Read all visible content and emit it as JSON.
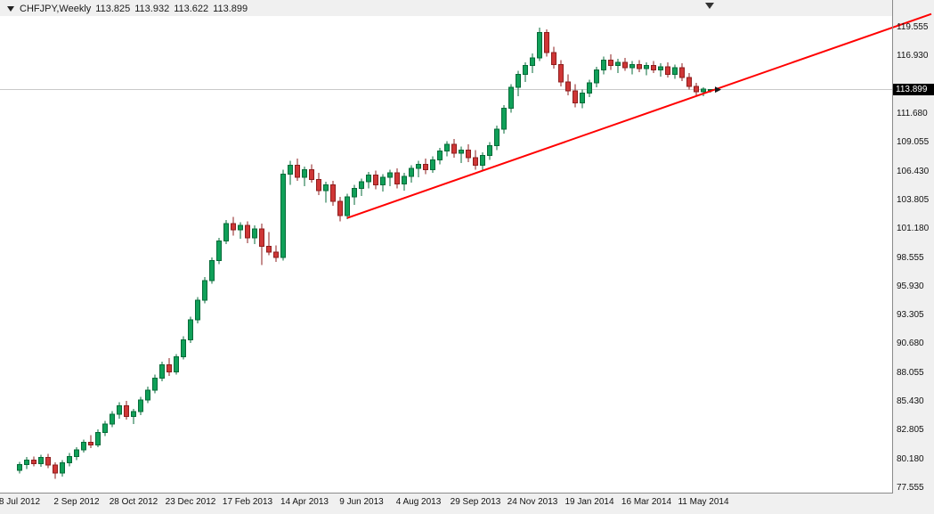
{
  "header": {
    "symbol": "CHFJPY,Weekly",
    "open": "113.825",
    "high": "113.932",
    "low": "113.622",
    "close": "113.899"
  },
  "icons": {
    "header_marker": "triangle-down-icon",
    "shift_marker": "triangle-down-icon",
    "price_arrow": "triangle-right-icon"
  },
  "colors": {
    "bull_fill": "#10a059",
    "bull_stroke": "#066b38",
    "bear_fill": "#cf3636",
    "bear_stroke": "#8e1d1d",
    "trendline": "#ff0000",
    "price_line": "#c9c9c9",
    "price_box_bg": "#000000",
    "price_box_text": "#ffffff",
    "marker": "#1a1a1a"
  },
  "chart_data": {
    "type": "candlestick",
    "symbol": "CHFJPY",
    "timeframe": "Weekly",
    "current_price": 113.899,
    "y_axis": {
      "max": 119.555,
      "min": 77.555,
      "step": 2.625,
      "visible_ticks": [
        119.555,
        116.93,
        111.68,
        109.055,
        106.43,
        103.805,
        101.18,
        98.555,
        95.93,
        93.305,
        90.68,
        88.055,
        85.43,
        82.805,
        80.18,
        77.555
      ]
    },
    "x_axis": {
      "labels": [
        {
          "index": 0,
          "text": "8 Jul 2012"
        },
        {
          "index": 8,
          "text": "2 Sep 2012"
        },
        {
          "index": 16,
          "text": "28 Oct 2012"
        },
        {
          "index": 24,
          "text": "23 Dec 2012"
        },
        {
          "index": 32,
          "text": "17 Feb 2013"
        },
        {
          "index": 40,
          "text": "14 Apr 2013"
        },
        {
          "index": 48,
          "text": "9 Jun 2013"
        },
        {
          "index": 56,
          "text": "4 Aug 2013"
        },
        {
          "index": 64,
          "text": "29 Sep 2013"
        },
        {
          "index": 72,
          "text": "24 Nov 2013"
        },
        {
          "index": 80,
          "text": "19 Jan 2014"
        },
        {
          "index": 88,
          "text": "16 Mar 2014"
        },
        {
          "index": 96,
          "text": "11 May 2014"
        }
      ]
    },
    "trendline": {
      "start_index": 46,
      "start_price": 102.2,
      "end_index": 128,
      "end_price": 120.8
    },
    "candles": [
      [
        79.2,
        79.95,
        78.9,
        79.7
      ],
      [
        79.7,
        80.4,
        79.3,
        80.1
      ],
      [
        80.1,
        80.45,
        79.55,
        79.8
      ],
      [
        79.8,
        80.6,
        79.5,
        80.35
      ],
      [
        80.35,
        80.7,
        79.4,
        79.65
      ],
      [
        79.65,
        79.9,
        78.4,
        78.95
      ],
      [
        78.95,
        80.1,
        78.6,
        79.85
      ],
      [
        79.85,
        80.75,
        79.55,
        80.45
      ],
      [
        80.45,
        81.3,
        80.1,
        81.05
      ],
      [
        81.05,
        82.0,
        80.8,
        81.75
      ],
      [
        81.75,
        82.4,
        81.2,
        81.5
      ],
      [
        81.5,
        82.9,
        81.3,
        82.65
      ],
      [
        82.65,
        83.7,
        82.3,
        83.4
      ],
      [
        83.4,
        84.6,
        83.1,
        84.3
      ],
      [
        84.3,
        85.4,
        83.9,
        85.05
      ],
      [
        85.05,
        85.5,
        83.8,
        84.1
      ],
      [
        84.1,
        84.8,
        83.4,
        84.55
      ],
      [
        84.55,
        85.9,
        84.2,
        85.6
      ],
      [
        85.6,
        86.8,
        85.3,
        86.5
      ],
      [
        86.5,
        87.9,
        86.2,
        87.6
      ],
      [
        87.6,
        89.1,
        87.3,
        88.8
      ],
      [
        88.8,
        89.4,
        87.8,
        88.15
      ],
      [
        88.15,
        89.8,
        87.9,
        89.55
      ],
      [
        89.55,
        91.4,
        89.3,
        91.1
      ],
      [
        91.1,
        93.2,
        90.8,
        92.9
      ],
      [
        92.9,
        95.0,
        92.6,
        94.7
      ],
      [
        94.7,
        96.8,
        94.4,
        96.5
      ],
      [
        96.5,
        98.6,
        96.2,
        98.3
      ],
      [
        98.3,
        100.4,
        98.0,
        100.1
      ],
      [
        100.1,
        102.0,
        99.8,
        101.7
      ],
      [
        101.7,
        102.3,
        100.6,
        101.1
      ],
      [
        101.1,
        101.8,
        100.3,
        101.5
      ],
      [
        101.5,
        101.9,
        99.9,
        100.4
      ],
      [
        100.4,
        101.5,
        99.8,
        101.2
      ],
      [
        101.2,
        101.7,
        97.9,
        99.6
      ],
      [
        99.6,
        100.9,
        98.8,
        99.1
      ],
      [
        99.1,
        99.7,
        98.2,
        98.6
      ],
      [
        98.6,
        106.6,
        98.3,
        106.2
      ],
      [
        106.2,
        107.4,
        105.2,
        107.0
      ],
      [
        107.0,
        107.6,
        105.6,
        105.9
      ],
      [
        105.9,
        106.9,
        105.1,
        106.6
      ],
      [
        106.6,
        107.1,
        105.4,
        105.7
      ],
      [
        105.7,
        106.3,
        104.3,
        104.7
      ],
      [
        104.7,
        105.5,
        103.6,
        105.2
      ],
      [
        105.2,
        105.6,
        103.3,
        103.7
      ],
      [
        103.7,
        104.1,
        101.9,
        102.4
      ],
      [
        102.4,
        104.4,
        102.1,
        104.1
      ],
      [
        104.1,
        105.2,
        103.4,
        104.9
      ],
      [
        104.9,
        105.8,
        104.2,
        105.5
      ],
      [
        105.5,
        106.4,
        104.9,
        106.1
      ],
      [
        106.1,
        106.5,
        104.8,
        105.2
      ],
      [
        105.2,
        106.2,
        104.6,
        105.9
      ],
      [
        105.9,
        106.6,
        105.1,
        106.3
      ],
      [
        106.3,
        106.7,
        104.9,
        105.3
      ],
      [
        105.3,
        106.3,
        104.7,
        106.0
      ],
      [
        106.0,
        107.0,
        105.4,
        106.7
      ],
      [
        106.7,
        107.4,
        105.9,
        107.1
      ],
      [
        107.1,
        107.6,
        106.2,
        106.6
      ],
      [
        106.6,
        107.8,
        106.3,
        107.5
      ],
      [
        107.5,
        108.6,
        107.1,
        108.3
      ],
      [
        108.3,
        109.2,
        107.8,
        108.9
      ],
      [
        108.9,
        109.4,
        107.7,
        108.1
      ],
      [
        108.1,
        108.7,
        107.2,
        108.4
      ],
      [
        108.4,
        108.9,
        107.3,
        107.7
      ],
      [
        107.7,
        108.4,
        106.6,
        107.0
      ],
      [
        107.0,
        108.2,
        106.5,
        107.9
      ],
      [
        107.9,
        109.1,
        107.5,
        108.8
      ],
      [
        108.8,
        110.6,
        108.4,
        110.3
      ],
      [
        110.3,
        112.5,
        109.9,
        112.2
      ],
      [
        112.2,
        114.4,
        111.8,
        114.1
      ],
      [
        114.1,
        115.6,
        113.3,
        115.3
      ],
      [
        115.3,
        116.4,
        114.6,
        116.1
      ],
      [
        116.1,
        117.2,
        115.4,
        116.8
      ],
      [
        116.8,
        119.55,
        116.5,
        119.1
      ],
      [
        119.1,
        119.4,
        116.9,
        117.3
      ],
      [
        117.3,
        117.8,
        115.8,
        116.2
      ],
      [
        116.2,
        116.6,
        114.2,
        114.6
      ],
      [
        114.6,
        115.3,
        113.4,
        113.8
      ],
      [
        113.8,
        114.4,
        112.3,
        112.7
      ],
      [
        112.7,
        113.9,
        112.2,
        113.6
      ],
      [
        113.6,
        114.8,
        113.2,
        114.5
      ],
      [
        114.5,
        116.0,
        114.1,
        115.7
      ],
      [
        115.7,
        116.9,
        115.3,
        116.6
      ],
      [
        116.6,
        117.1,
        115.7,
        116.1
      ],
      [
        116.1,
        116.7,
        115.4,
        116.4
      ],
      [
        116.4,
        116.8,
        115.6,
        115.9
      ],
      [
        115.9,
        116.5,
        115.3,
        116.2
      ],
      [
        116.2,
        116.6,
        115.5,
        115.8
      ],
      [
        115.8,
        116.4,
        115.2,
        116.1
      ],
      [
        116.1,
        116.5,
        115.4,
        115.7
      ],
      [
        115.7,
        116.3,
        115.1,
        116.0
      ],
      [
        116.0,
        116.4,
        115.0,
        115.3
      ],
      [
        115.3,
        116.2,
        114.9,
        115.9
      ],
      [
        115.9,
        116.3,
        114.7,
        115.0
      ],
      [
        115.0,
        115.4,
        113.9,
        114.2
      ],
      [
        114.2,
        114.5,
        113.4,
        113.7
      ],
      [
        113.7,
        114.1,
        113.3,
        113.95
      ],
      [
        113.825,
        113.932,
        113.622,
        113.899
      ]
    ]
  }
}
